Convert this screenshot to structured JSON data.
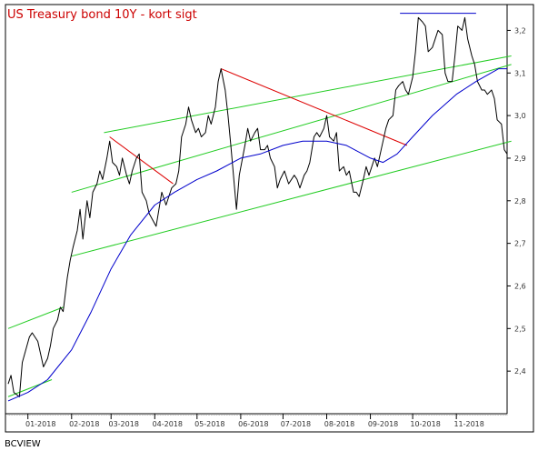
{
  "chart_data": {
    "type": "line",
    "title": "US Treasury bond 10Y - kort sigt",
    "source": "BCVIEW",
    "ylim": [
      2.3,
      3.25
    ],
    "y_ticks": [
      2.4,
      2.5,
      2.6,
      2.7,
      2.8,
      2.9,
      3.0,
      3.1,
      3.2
    ],
    "y_tick_labels": [
      "2,4",
      "2,5",
      "2,6",
      "2,7",
      "2,8",
      "2,9",
      "3,0",
      "3,1",
      "3,2"
    ],
    "x_start": "2017-12-18",
    "x_end": "2018-12-07",
    "x_ticks": [
      {
        "date": "2018-01-01",
        "label": "01-2018"
      },
      {
        "date": "2018-02-01",
        "label": "02-2018"
      },
      {
        "date": "2018-03-01",
        "label": "03-2018"
      },
      {
        "date": "2018-04-01",
        "label": "04-2018"
      },
      {
        "date": "2018-05-01",
        "label": "05-2018"
      },
      {
        "date": "2018-06-01",
        "label": "06-2018"
      },
      {
        "date": "2018-07-01",
        "label": "07-2018"
      },
      {
        "date": "2018-08-01",
        "label": "08-2018"
      },
      {
        "date": "2018-09-01",
        "label": "09-2018"
      },
      {
        "date": "2018-10-01",
        "label": "10-2018"
      },
      {
        "date": "2018-11-01",
        "label": "11-2018"
      }
    ],
    "colors": {
      "price": "#000000",
      "moving_average": "#0000cc",
      "channel": "#22cc22",
      "downtrend": "#dd0000",
      "resistance": "#0000cc",
      "title": "#cc0000"
    },
    "series": [
      {
        "style": "price",
        "points": [
          [
            "2017-12-18",
            2.37
          ],
          [
            "2017-12-20",
            2.39
          ],
          [
            "2017-12-22",
            2.35
          ],
          [
            "2017-12-26",
            2.34
          ],
          [
            "2017-12-28",
            2.42
          ],
          [
            "2018-01-02",
            2.48
          ],
          [
            "2018-01-04",
            2.49
          ],
          [
            "2018-01-08",
            2.47
          ],
          [
            "2018-01-10",
            2.44
          ],
          [
            "2018-01-12",
            2.41
          ],
          [
            "2018-01-15",
            2.43
          ],
          [
            "2018-01-17",
            2.46
          ],
          [
            "2018-01-19",
            2.5
          ],
          [
            "2018-01-22",
            2.52
          ],
          [
            "2018-01-24",
            2.55
          ],
          [
            "2018-01-26",
            2.54
          ],
          [
            "2018-01-29",
            2.62
          ],
          [
            "2018-01-31",
            2.66
          ],
          [
            "2018-02-02",
            2.69
          ],
          [
            "2018-02-05",
            2.73
          ],
          [
            "2018-02-07",
            2.78
          ],
          [
            "2018-02-09",
            2.71
          ],
          [
            "2018-02-12",
            2.8
          ],
          [
            "2018-02-14",
            2.76
          ],
          [
            "2018-02-16",
            2.82
          ],
          [
            "2018-02-19",
            2.84
          ],
          [
            "2018-02-21",
            2.87
          ],
          [
            "2018-02-23",
            2.85
          ],
          [
            "2018-02-26",
            2.9
          ],
          [
            "2018-02-28",
            2.94
          ],
          [
            "2018-03-02",
            2.89
          ],
          [
            "2018-03-05",
            2.88
          ],
          [
            "2018-03-07",
            2.86
          ],
          [
            "2018-03-09",
            2.9
          ],
          [
            "2018-03-12",
            2.86
          ],
          [
            "2018-03-14",
            2.84
          ],
          [
            "2018-03-16",
            2.87
          ],
          [
            "2018-03-19",
            2.9
          ],
          [
            "2018-03-21",
            2.91
          ],
          [
            "2018-03-23",
            2.82
          ],
          [
            "2018-03-26",
            2.8
          ],
          [
            "2018-03-28",
            2.77
          ],
          [
            "2018-04-02",
            2.74
          ],
          [
            "2018-04-04",
            2.78
          ],
          [
            "2018-04-06",
            2.82
          ],
          [
            "2018-04-09",
            2.79
          ],
          [
            "2018-04-11",
            2.81
          ],
          [
            "2018-04-13",
            2.83
          ],
          [
            "2018-04-16",
            2.84
          ],
          [
            "2018-04-18",
            2.87
          ],
          [
            "2018-04-20",
            2.95
          ],
          [
            "2018-04-23",
            2.98
          ],
          [
            "2018-04-25",
            3.02
          ],
          [
            "2018-04-27",
            2.99
          ],
          [
            "2018-04-30",
            2.96
          ],
          [
            "2018-05-02",
            2.97
          ],
          [
            "2018-05-04",
            2.95
          ],
          [
            "2018-05-07",
            2.96
          ],
          [
            "2018-05-09",
            3.0
          ],
          [
            "2018-05-11",
            2.98
          ],
          [
            "2018-05-14",
            3.02
          ],
          [
            "2018-05-16",
            3.08
          ],
          [
            "2018-05-18",
            3.11
          ],
          [
            "2018-05-21",
            3.06
          ],
          [
            "2018-05-23",
            3.0
          ],
          [
            "2018-05-25",
            2.93
          ],
          [
            "2018-05-29",
            2.78
          ],
          [
            "2018-05-31",
            2.86
          ],
          [
            "2018-06-04",
            2.93
          ],
          [
            "2018-06-06",
            2.97
          ],
          [
            "2018-06-08",
            2.94
          ],
          [
            "2018-06-11",
            2.96
          ],
          [
            "2018-06-13",
            2.97
          ],
          [
            "2018-06-15",
            2.92
          ],
          [
            "2018-06-18",
            2.92
          ],
          [
            "2018-06-20",
            2.93
          ],
          [
            "2018-06-22",
            2.9
          ],
          [
            "2018-06-25",
            2.88
          ],
          [
            "2018-06-27",
            2.83
          ],
          [
            "2018-06-29",
            2.85
          ],
          [
            "2018-07-02",
            2.87
          ],
          [
            "2018-07-05",
            2.84
          ],
          [
            "2018-07-09",
            2.86
          ],
          [
            "2018-07-11",
            2.85
          ],
          [
            "2018-07-13",
            2.83
          ],
          [
            "2018-07-16",
            2.86
          ],
          [
            "2018-07-18",
            2.87
          ],
          [
            "2018-07-20",
            2.89
          ],
          [
            "2018-07-23",
            2.95
          ],
          [
            "2018-07-25",
            2.96
          ],
          [
            "2018-07-27",
            2.95
          ],
          [
            "2018-07-30",
            2.97
          ],
          [
            "2018-08-01",
            3.0
          ],
          [
            "2018-08-03",
            2.95
          ],
          [
            "2018-08-06",
            2.94
          ],
          [
            "2018-08-08",
            2.96
          ],
          [
            "2018-08-10",
            2.87
          ],
          [
            "2018-08-13",
            2.88
          ],
          [
            "2018-08-15",
            2.86
          ],
          [
            "2018-08-17",
            2.87
          ],
          [
            "2018-08-20",
            2.82
          ],
          [
            "2018-08-22",
            2.82
          ],
          [
            "2018-08-24",
            2.81
          ],
          [
            "2018-08-27",
            2.85
          ],
          [
            "2018-08-29",
            2.88
          ],
          [
            "2018-08-31",
            2.86
          ],
          [
            "2018-09-04",
            2.9
          ],
          [
            "2018-09-06",
            2.88
          ],
          [
            "2018-09-10",
            2.94
          ],
          [
            "2018-09-12",
            2.97
          ],
          [
            "2018-09-14",
            2.99
          ],
          [
            "2018-09-17",
            3.0
          ],
          [
            "2018-09-19",
            3.06
          ],
          [
            "2018-09-21",
            3.07
          ],
          [
            "2018-09-24",
            3.08
          ],
          [
            "2018-09-26",
            3.06
          ],
          [
            "2018-09-28",
            3.05
          ],
          [
            "2018-10-01",
            3.09
          ],
          [
            "2018-10-03",
            3.15
          ],
          [
            "2018-10-05",
            3.23
          ],
          [
            "2018-10-08",
            3.22
          ],
          [
            "2018-10-10",
            3.21
          ],
          [
            "2018-10-12",
            3.15
          ],
          [
            "2018-10-15",
            3.16
          ],
          [
            "2018-10-17",
            3.18
          ],
          [
            "2018-10-19",
            3.2
          ],
          [
            "2018-10-22",
            3.19
          ],
          [
            "2018-10-24",
            3.1
          ],
          [
            "2018-10-26",
            3.08
          ],
          [
            "2018-10-29",
            3.08
          ],
          [
            "2018-10-31",
            3.14
          ],
          [
            "2018-11-02",
            3.21
          ],
          [
            "2018-11-05",
            3.2
          ],
          [
            "2018-11-07",
            3.23
          ],
          [
            "2018-11-09",
            3.18
          ],
          [
            "2018-11-12",
            3.14
          ],
          [
            "2018-11-14",
            3.12
          ],
          [
            "2018-11-16",
            3.08
          ],
          [
            "2018-11-19",
            3.06
          ],
          [
            "2018-11-21",
            3.06
          ],
          [
            "2018-11-23",
            3.05
          ],
          [
            "2018-11-26",
            3.06
          ],
          [
            "2018-11-28",
            3.04
          ],
          [
            "2018-11-30",
            2.99
          ],
          [
            "2018-12-03",
            2.98
          ],
          [
            "2018-12-05",
            2.92
          ],
          [
            "2018-12-07",
            2.91
          ]
        ]
      },
      {
        "style": "moving_average",
        "points": [
          [
            "2017-12-18",
            2.33
          ],
          [
            "2018-01-01",
            2.35
          ],
          [
            "2018-01-15",
            2.38
          ],
          [
            "2018-02-01",
            2.45
          ],
          [
            "2018-02-15",
            2.54
          ],
          [
            "2018-03-01",
            2.64
          ],
          [
            "2018-03-15",
            2.72
          ],
          [
            "2018-04-01",
            2.79
          ],
          [
            "2018-04-15",
            2.82
          ],
          [
            "2018-05-01",
            2.85
          ],
          [
            "2018-05-15",
            2.87
          ],
          [
            "2018-06-01",
            2.9
          ],
          [
            "2018-06-15",
            2.91
          ],
          [
            "2018-07-01",
            2.93
          ],
          [
            "2018-07-15",
            2.94
          ],
          [
            "2018-08-01",
            2.94
          ],
          [
            "2018-08-15",
            2.93
          ],
          [
            "2018-09-01",
            2.9
          ],
          [
            "2018-09-10",
            2.89
          ],
          [
            "2018-09-20",
            2.91
          ],
          [
            "2018-10-01",
            2.95
          ],
          [
            "2018-10-15",
            3.0
          ],
          [
            "2018-11-01",
            3.05
          ],
          [
            "2018-11-15",
            3.08
          ],
          [
            "2018-12-01",
            3.11
          ],
          [
            "2018-12-07",
            3.11
          ]
        ]
      }
    ],
    "annotation_lines": [
      {
        "style": "channel",
        "from": [
          "2017-12-18",
          2.5
        ],
        "to": [
          "2018-01-26",
          2.55
        ]
      },
      {
        "style": "channel",
        "from": [
          "2017-12-18",
          2.34
        ],
        "to": [
          "2018-01-18",
          2.38
        ]
      },
      {
        "style": "channel",
        "from": [
          "2018-02-24",
          2.96
        ],
        "to": [
          "2018-12-10",
          3.14
        ]
      },
      {
        "style": "channel",
        "from": [
          "2018-02-01",
          2.82
        ],
        "to": [
          "2018-12-10",
          3.12
        ]
      },
      {
        "style": "channel",
        "from": [
          "2018-02-01",
          2.67
        ],
        "to": [
          "2018-12-10",
          2.94
        ]
      },
      {
        "style": "downtrend",
        "from": [
          "2018-02-28",
          2.95
        ],
        "to": [
          "2018-04-14",
          2.84
        ]
      },
      {
        "style": "downtrend",
        "from": [
          "2018-05-18",
          3.11
        ],
        "to": [
          "2018-09-27",
          2.93
        ]
      },
      {
        "style": "resistance",
        "from": [
          "2018-09-22",
          3.24
        ],
        "to": [
          "2018-11-15",
          3.24
        ]
      }
    ]
  }
}
